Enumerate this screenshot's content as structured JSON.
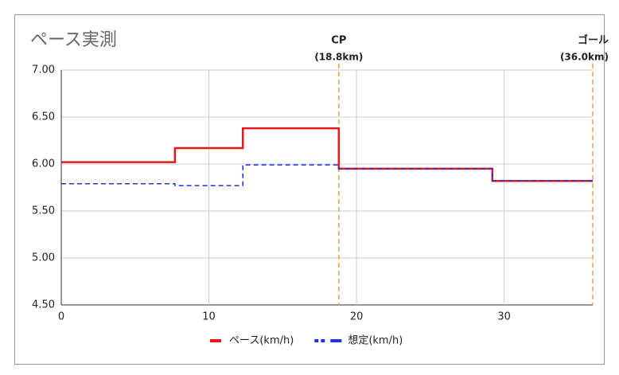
{
  "chart_data": {
    "type": "step",
    "title": "ペース実測",
    "x": [
      0,
      7.7,
      12.3,
      18.8,
      29.2,
      36.0
    ],
    "series": [
      {
        "name": "ペース(km/h)",
        "color": "#e8181a",
        "dash": false,
        "values": [
          6.02,
          6.17,
          6.38,
          5.95,
          5.82,
          5.82
        ]
      },
      {
        "name": "想定(km/h)",
        "color": "#2233dd",
        "dash": true,
        "values": [
          5.79,
          5.77,
          5.99,
          5.95,
          5.82,
          5.82
        ]
      }
    ],
    "annotations": [
      {
        "x": 18.8,
        "label": "CP",
        "sublabel": "(18.8km)",
        "color": "#f0a050"
      },
      {
        "x": 36.0,
        "label": "ゴール",
        "sublabel": "(36.0km)",
        "color": "#f0a050"
      }
    ],
    "xlim": [
      0,
      36
    ],
    "xticks": [
      0,
      10,
      20,
      30
    ],
    "ylim": [
      4.5,
      7.0
    ],
    "yticks": [
      {
        "value": 4.5,
        "label": "4.50"
      },
      {
        "value": 5.0,
        "label": "5.00"
      },
      {
        "value": 5.5,
        "label": "5.50"
      },
      {
        "value": 6.0,
        "label": "6.00"
      },
      {
        "value": 6.5,
        "label": "6.50"
      },
      {
        "value": 7.0,
        "label": "7.00"
      }
    ],
    "grid": true,
    "legend": "bottom"
  }
}
